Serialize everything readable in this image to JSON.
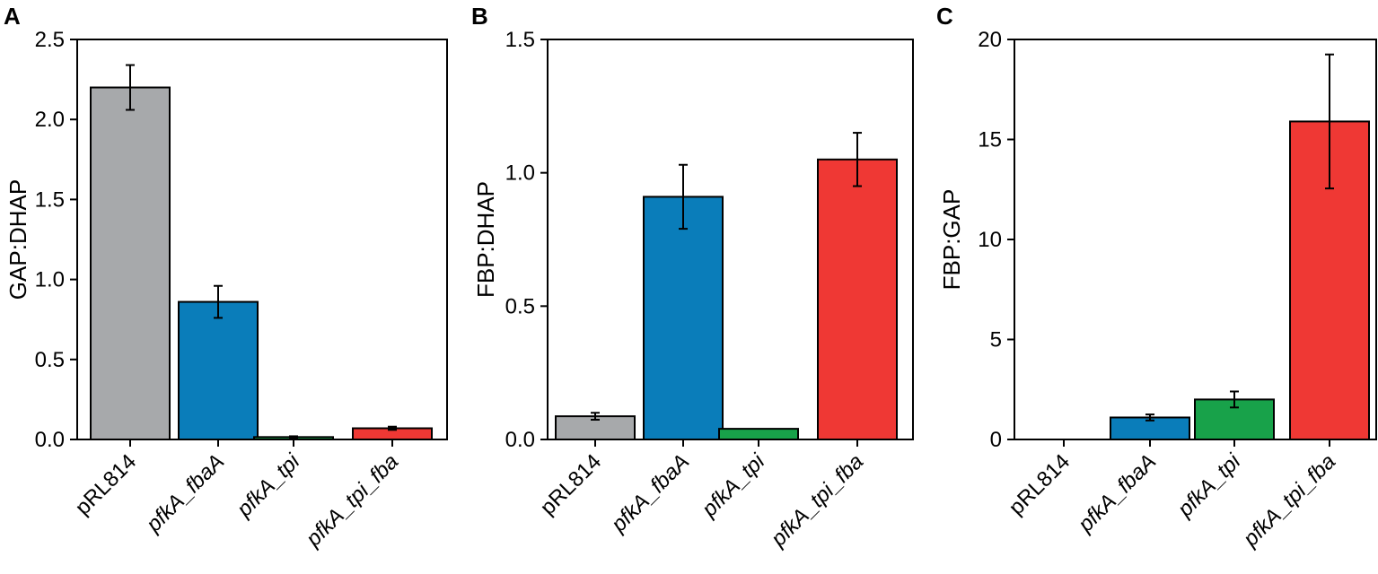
{
  "colors": {
    "gray": "#a7a9ab",
    "blue": "#0a7dba",
    "green": "#18a24a",
    "red": "#ef3834"
  },
  "chart_data": [
    {
      "panel": "A",
      "type": "bar",
      "ylabel": "GAP:DHAP",
      "categories": [
        "pRL814",
        "pfkA_fbaA",
        "pfkA_tpi",
        "pfkA_tpi_fba"
      ],
      "italic": [
        false,
        true,
        true,
        true
      ],
      "values": [
        2.2,
        0.86,
        0.015,
        0.07
      ],
      "errors": [
        0.14,
        0.1,
        0.005,
        0.01
      ],
      "bar_colors": [
        "#a7a9ab",
        "#0a7dba",
        "#18a24a",
        "#ef3834"
      ],
      "ylim": [
        0,
        2.5
      ],
      "yticks": [
        0,
        0.5,
        1,
        1.5,
        2,
        2.5
      ],
      "ytick_labels": [
        "0.0",
        "0.5",
        "1.0",
        "1.5",
        "2.0",
        "2.5"
      ]
    },
    {
      "panel": "B",
      "type": "bar",
      "ylabel": "FBP:DHAP",
      "categories": [
        "pRL814",
        "pfkA_fbaA",
        "pfkA_tpi",
        "pfkA_tpi_fba"
      ],
      "italic": [
        false,
        true,
        true,
        true
      ],
      "values": [
        0.087,
        0.91,
        0.04,
        1.05
      ],
      "errors": [
        0.013,
        0.12,
        0,
        0.1
      ],
      "bar_colors": [
        "#a7a9ab",
        "#0a7dba",
        "#18a24a",
        "#ef3834"
      ],
      "ylim": [
        0,
        1.5
      ],
      "yticks": [
        0,
        0.5,
        1,
        1.5
      ],
      "ytick_labels": [
        "0.0",
        "0.5",
        "1.0",
        "1.5"
      ]
    },
    {
      "panel": "C",
      "type": "bar",
      "ylabel": "FBP:GAP",
      "categories": [
        "pRL814",
        "pfkA_fbaA",
        "pfkA_tpi",
        "pfkA_tpi_fba"
      ],
      "italic": [
        false,
        true,
        true,
        true
      ],
      "values": [
        0,
        1.1,
        2.0,
        15.9
      ],
      "errors": [
        0,
        0.15,
        0.4,
        3.35
      ],
      "bar_colors": [
        "#a7a9ab",
        "#0a7dba",
        "#18a24a",
        "#ef3834"
      ],
      "ylim": [
        0,
        20
      ],
      "yticks": [
        0,
        5,
        10,
        15,
        20
      ],
      "ytick_labels": [
        "0",
        "5",
        "10",
        "15",
        "20"
      ]
    }
  ]
}
